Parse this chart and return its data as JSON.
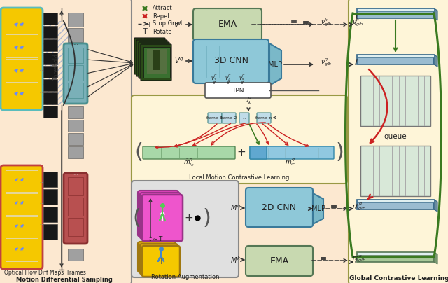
{
  "bg_main": "#fce8d0",
  "bg_yellow_panel": "#fef5d8",
  "bg_green_box": "#c8d9b0",
  "bg_blue_box": "#8ec8d8",
  "bg_teal_box": "#7ab8c8",
  "bg_gray_panel": "#e0e0e0",
  "color_green_arrow": "#3a7a20",
  "color_red_arrow": "#cc2222",
  "color_dark": "#222222",
  "title_motion": "Motion Differential Sampling",
  "title_rotation": "Rotation Augmentation",
  "title_global": "Global Contrastive Learning",
  "title_local": "Local Motion Contrastive Learning",
  "label_optical": "Optical Flow",
  "label_diff": "Diff Maps",
  "label_frames": "Frames",
  "label_ema1": "EMA",
  "label_3dcnn": "3D CNN",
  "label_mlp": "MLP",
  "label_2dcnn": "2D CNN",
  "label_ema2": "EMA",
  "label_tpn": "TPN",
  "label_queue": "queue",
  "legend_attract": "Attract",
  "legend_repel": "Repel",
  "legend_stopgrad": "Stop Grad",
  "legend_rotate": "Rotate",
  "yellow_gold": "#f5c800",
  "cyan_border": "#5abcbc",
  "red_border": "#c04040",
  "teal_frames": "#7ab0b8",
  "dark_red_frames": "#b85050",
  "black_diff": "#181818",
  "gray_frame": "#a0a0a0",
  "magenta_stack": "#ee44cc",
  "queue_bg": "#d8e8d8",
  "queue_line": "#aaaaaa",
  "bar_green": "#a8d8a8",
  "bar_blue": "#90c8e0",
  "bar_blue_hi": "#60a8d0",
  "global_bar_blue": "#90bcd0",
  "global_bar_green": "#a8c890"
}
